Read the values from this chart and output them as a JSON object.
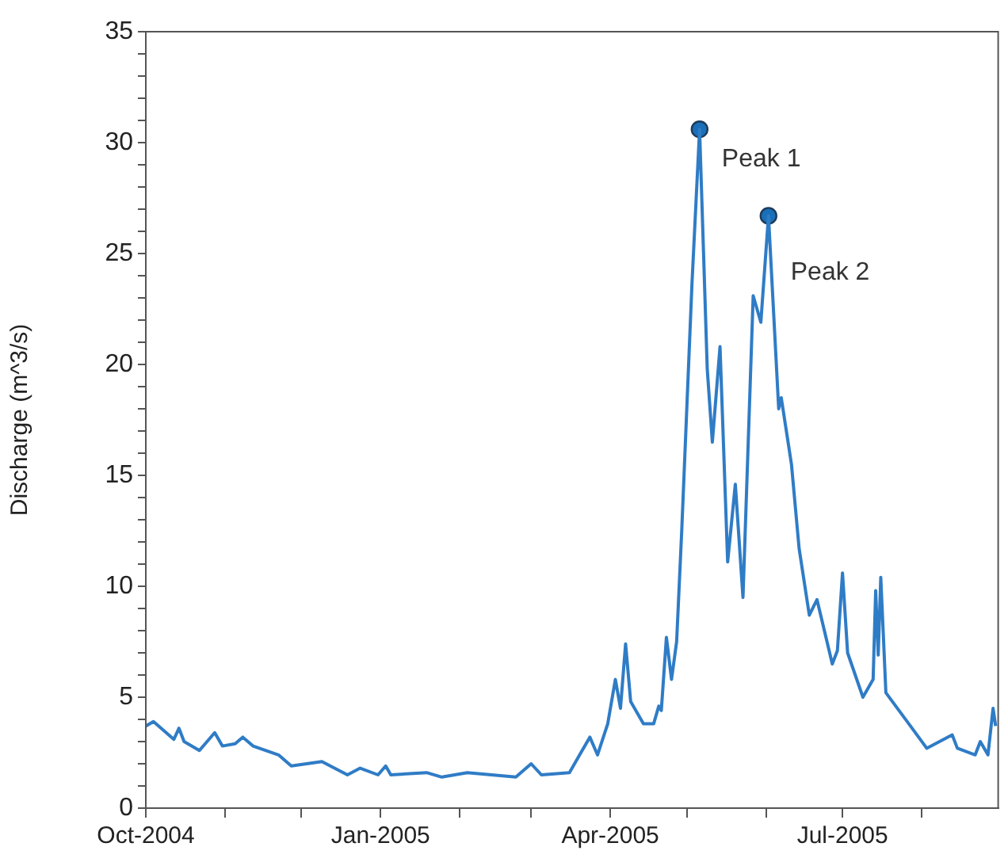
{
  "chart_data": {
    "type": "line",
    "ylabel": "Discharge (m^3/s)",
    "x": [
      "2004-10-01",
      "2004-10-04",
      "2004-10-12",
      "2004-10-14",
      "2004-10-16",
      "2004-10-22",
      "2004-10-28",
      "2004-10-31",
      "2004-11-05",
      "2004-11-08",
      "2004-11-12",
      "2004-11-22",
      "2004-11-27",
      "2004-12-09",
      "2004-12-19",
      "2004-12-24",
      "2004-12-31",
      "2005-01-03",
      "2005-01-05",
      "2005-01-19",
      "2005-01-25",
      "2005-02-04",
      "2005-02-23",
      "2005-03-01",
      "2005-03-05",
      "2005-03-16",
      "2005-03-20",
      "2005-03-24",
      "2005-03-27",
      "2005-03-31",
      "2005-04-03",
      "2005-04-05",
      "2005-04-07",
      "2005-04-09",
      "2005-04-14",
      "2005-04-18",
      "2005-04-20",
      "2005-04-21",
      "2005-04-23",
      "2005-04-25",
      "2005-04-27",
      "2005-04-29",
      "2005-05-03",
      "2005-05-06",
      "2005-05-09",
      "2005-05-11",
      "2005-05-14",
      "2005-05-17",
      "2005-05-20",
      "2005-05-23",
      "2005-05-27",
      "2005-05-30",
      "2005-06-02",
      "2005-06-06",
      "2005-06-07",
      "2005-06-11",
      "2005-06-14",
      "2005-06-18",
      "2005-06-21",
      "2005-06-27",
      "2005-06-29",
      "2005-07-01",
      "2005-07-03",
      "2005-07-09",
      "2005-07-13",
      "2005-07-14",
      "2005-07-15",
      "2005-07-16",
      "2005-07-18",
      "2005-07-27",
      "2005-08-03",
      "2005-08-08",
      "2005-08-13",
      "2005-08-15",
      "2005-08-22",
      "2005-08-24",
      "2005-08-27",
      "2005-08-29",
      "2005-08-30"
    ],
    "series": [
      {
        "color": "#2f7cc6",
        "values": [
          3.7,
          3.9,
          3.1,
          3.6,
          3.0,
          2.6,
          3.4,
          2.8,
          2.9,
          3.2,
          2.8,
          2.4,
          1.9,
          2.1,
          1.5,
          1.8,
          1.5,
          1.9,
          1.5,
          1.6,
          1.4,
          1.6,
          1.4,
          2.0,
          1.5,
          1.6,
          2.4,
          3.2,
          2.4,
          3.8,
          5.8,
          4.5,
          7.4,
          4.8,
          3.8,
          3.8,
          4.6,
          4.4,
          7.7,
          5.8,
          7.5,
          12.5,
          23.6,
          30.6,
          19.8,
          16.5,
          20.8,
          11.1,
          14.6,
          9.5,
          23.1,
          21.9,
          26.7,
          18.0,
          18.5,
          15.5,
          11.7,
          8.7,
          9.4,
          6.5,
          7.1,
          10.6,
          7.0,
          5.0,
          5.8,
          9.8,
          6.9,
          10.4,
          5.2,
          3.8,
          2.7,
          3.0,
          3.3,
          2.7,
          2.4,
          3.0,
          2.4,
          4.5,
          3.7
        ]
      },
      {
        "type": "scatter",
        "color": "#1a6fb8",
        "marker": "circle",
        "x": [
          "2005-05-06",
          "2005-06-02"
        ],
        "values": [
          30.6,
          26.7
        ]
      }
    ],
    "annotations": [
      {
        "text": "Peak 1",
        "x": "2005-05-06",
        "y": 30.6
      },
      {
        "text": "Peak 2",
        "x": "2005-06-02",
        "y": 26.7
      }
    ],
    "xlim": [
      "2004-10-01",
      "2005-08-31"
    ],
    "xticks": [
      {
        "value": "2004-10-01",
        "label": "Oct-2004"
      },
      {
        "value": "2004-11-01",
        "label": null
      },
      {
        "value": "2004-12-01",
        "label": null
      },
      {
        "value": "2005-01-01",
        "label": "Jan-2005"
      },
      {
        "value": "2005-02-01",
        "label": null
      },
      {
        "value": "2005-03-01",
        "label": null
      },
      {
        "value": "2005-04-01",
        "label": "Apr-2005"
      },
      {
        "value": "2005-05-01",
        "label": null
      },
      {
        "value": "2005-06-01",
        "label": null
      },
      {
        "value": "2005-07-01",
        "label": "Jul-2005"
      },
      {
        "value": "2005-08-01",
        "label": null
      }
    ],
    "ylim": [
      0,
      35
    ],
    "yticks": [
      0,
      {
        "value": 1,
        "label": null
      },
      {
        "value": 2,
        "label": null
      },
      {
        "value": 3,
        "label": null
      },
      {
        "value": 4,
        "label": null
      },
      5,
      {
        "value": 6,
        "label": null
      },
      {
        "value": 7,
        "label": null
      },
      {
        "value": 8,
        "label": null
      },
      {
        "value": 9,
        "label": null
      },
      10,
      {
        "value": 11,
        "label": null
      },
      {
        "value": 12,
        "label": null
      },
      {
        "value": 13,
        "label": null
      },
      {
        "value": 14,
        "label": null
      },
      15,
      {
        "value": 16,
        "label": null
      },
      {
        "value": 17,
        "label": null
      },
      {
        "value": 18,
        "label": null
      },
      {
        "value": 19,
        "label": null
      },
      20,
      {
        "value": 21,
        "label": null
      },
      {
        "value": 22,
        "label": null
      },
      {
        "value": 23,
        "label": null
      },
      {
        "value": 24,
        "label": null
      },
      25,
      {
        "value": 26,
        "label": null
      },
      {
        "value": 27,
        "label": null
      },
      {
        "value": 28,
        "label": null
      },
      {
        "value": 29,
        "label": null
      },
      30,
      {
        "value": 31,
        "label": null
      },
      {
        "value": 32,
        "label": null
      },
      {
        "value": 33,
        "label": null
      },
      {
        "value": 34,
        "label": null
      },
      35
    ],
    "grid": false,
    "legend": false
  }
}
